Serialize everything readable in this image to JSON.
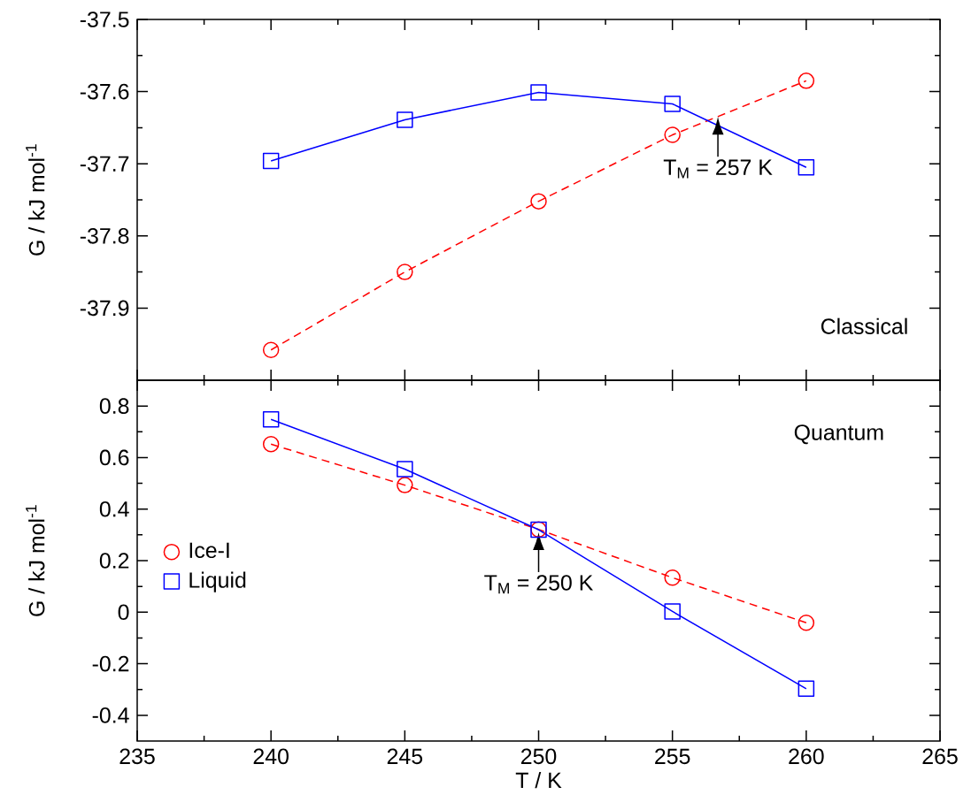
{
  "chart_data": [
    {
      "type": "line",
      "x": [
        240,
        245,
        250,
        255,
        260
      ],
      "xlim": [
        235,
        265
      ],
      "xticks": [
        235,
        240,
        245,
        250,
        255,
        260,
        265
      ],
      "ylim": [
        -38.0,
        -37.5
      ],
      "yticks": [
        -37.9,
        -37.8,
        -37.7,
        -37.6,
        -37.5
      ],
      "ylabel": "G / kJ mol$^{-1}$",
      "tick_labels": "y",
      "series": [
        {
          "color": "#ff0000",
          "values": [
            -37.958,
            -37.85,
            -37.752,
            -37.66,
            -37.585
          ],
          "line_style": "dashed",
          "marker": "circle"
        },
        {
          "color": "#0000ff",
          "values": [
            -37.696,
            -37.639,
            -37.601,
            -37.617,
            -37.705
          ],
          "line_style": "solid",
          "marker": "square"
        }
      ],
      "annotations": [
        {
          "text": "T$_{M}$ = 257 K",
          "x": 256.7,
          "y": -37.635
        },
        "Classical"
      ]
    },
    {
      "type": "line",
      "x": [
        240,
        245,
        250,
        255,
        260
      ],
      "xlim": [
        235,
        265
      ],
      "xticks": [
        235,
        240,
        245,
        250,
        255,
        260,
        265
      ],
      "ylim": [
        -0.5,
        0.9
      ],
      "yticks": [
        -0.4,
        -0.2,
        0,
        0.2,
        0.4,
        0.6,
        0.8
      ],
      "xlabel": "T / K",
      "ylabel": "G / kJ mol$^{-1}$",
      "legend": "left",
      "series": [
        {
          "name": "Ice-I",
          "color": "#ff0000",
          "values": [
            0.652,
            0.493,
            0.321,
            0.134,
            -0.041
          ],
          "line_style": "dashed",
          "marker": "circle"
        },
        {
          "name": "Liquid",
          "color": "#0000ff",
          "values": [
            0.748,
            0.555,
            0.32,
            0.003,
            -0.297
          ],
          "line_style": "solid",
          "marker": "square"
        }
      ],
      "annotations": [
        {
          "text": "T$_{M}$ = 250 K",
          "x": 250,
          "y": 0.31
        },
        "Quantum"
      ]
    }
  ]
}
